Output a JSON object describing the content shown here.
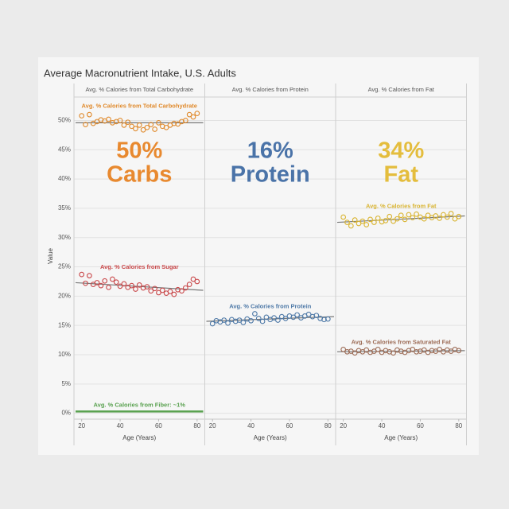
{
  "chart_data": {
    "type": "scatter",
    "title": "Average Macronutrient Intake, U.S. Adults",
    "y_label": "Value",
    "x_label": "Age (Years)",
    "ylim": [
      -1,
      54
    ],
    "yticks": [
      {
        "value": 0,
        "label": "0%"
      },
      {
        "value": 5,
        "label": "5%"
      },
      {
        "value": 10,
        "label": "10%"
      },
      {
        "value": 15,
        "label": "15%"
      },
      {
        "value": 20,
        "label": "20%"
      },
      {
        "value": 25,
        "label": "25%"
      },
      {
        "value": 30,
        "label": "30%"
      },
      {
        "value": 35,
        "label": "35%"
      },
      {
        "value": 40,
        "label": "40%"
      },
      {
        "value": 45,
        "label": "45%"
      },
      {
        "value": 50,
        "label": "50%"
      }
    ],
    "xlim": [
      16,
      84
    ],
    "xticks": [
      20,
      40,
      60,
      80
    ],
    "grid": true,
    "x": [
      20,
      22,
      24,
      26,
      28,
      30,
      32,
      34,
      36,
      38,
      40,
      42,
      44,
      46,
      48,
      50,
      52,
      54,
      56,
      58,
      60,
      62,
      64,
      66,
      68,
      70,
      72,
      74,
      76,
      78,
      80
    ],
    "panels": [
      {
        "header": "Avg. % Calories from Total Carbohydrate",
        "headline": [
          "50%",
          "Carbs"
        ],
        "headline_color": "#e8892f",
        "series": [
          {
            "name": "Avg. % Calories from Total Carbohydrate",
            "color": "#e08a2c",
            "trend": [
              49.6,
              49.6
            ],
            "values": [
              50.8,
              49.3,
              51.0,
              49.5,
              49.8,
              50.1,
              49.9,
              50.2,
              49.6,
              49.8,
              50.0,
              49.2,
              49.7,
              49.0,
              48.6,
              49.2,
              48.4,
              48.8,
              49.3,
              48.5,
              49.6,
              49.0,
              48.8,
              49.2,
              49.5,
              49.4,
              49.8,
              50.0,
              51.0,
              50.6,
              51.2
            ]
          },
          {
            "name": "Avg. % Calories from Sugar",
            "color": "#c9484a",
            "trend": [
              22.3,
              21.0
            ],
            "values": [
              23.7,
              22.2,
              23.5,
              22.0,
              22.3,
              21.8,
              22.6,
              21.5,
              22.9,
              22.4,
              21.7,
              22.1,
              21.5,
              21.8,
              21.2,
              21.9,
              21.4,
              21.6,
              20.9,
              21.3,
              20.6,
              21.0,
              20.5,
              20.8,
              20.3,
              21.1,
              20.9,
              21.4,
              22.0,
              22.9,
              22.5
            ]
          },
          {
            "name": "Avg. % Calories from Fiber: ~1%",
            "color": "#59a14f",
            "trend": [
              0.3,
              0.3
            ]
          }
        ]
      },
      {
        "header": "Avg. % Calories from Protein",
        "headline": [
          "16%",
          "Protein"
        ],
        "headline_color": "#4a73a8",
        "series": [
          {
            "name": "Avg. % Calories from Protein",
            "color": "#4e79a7",
            "trend": [
              15.7,
              16.5
            ],
            "values": [
              15.3,
              15.8,
              15.6,
              15.9,
              15.4,
              16.0,
              15.7,
              15.9,
              15.5,
              16.1,
              15.8,
              17.0,
              16.2,
              15.7,
              16.4,
              16.0,
              16.3,
              15.9,
              16.5,
              16.2,
              16.6,
              16.4,
              16.8,
              16.3,
              16.6,
              16.9,
              16.5,
              16.7,
              16.2,
              16.0,
              16.1
            ]
          }
        ]
      },
      {
        "header": "Avg. % Calories from Fat",
        "headline": [
          "34%",
          "Fat"
        ],
        "headline_color": "#e4bd3d",
        "series": [
          {
            "name": "Avg. % Calories from Fat",
            "color": "#d9b430",
            "trend": [
              32.6,
              33.7
            ],
            "values": [
              33.5,
              32.6,
              32.0,
              33.0,
              32.4,
              32.8,
              32.2,
              33.1,
              32.6,
              33.3,
              32.7,
              32.9,
              33.6,
              32.8,
              33.2,
              33.8,
              33.1,
              33.9,
              33.4,
              34.0,
              33.5,
              33.2,
              33.8,
              33.4,
              33.7,
              33.3,
              33.9,
              33.5,
              34.1,
              33.2,
              33.6
            ]
          },
          {
            "name": "Avg. % Calories from Saturated Fat",
            "color": "#9c6b55",
            "trend": [
              10.5,
              10.7
            ],
            "values": [
              10.9,
              10.5,
              10.6,
              10.3,
              10.7,
              10.5,
              10.8,
              10.4,
              10.6,
              10.9,
              10.4,
              10.7,
              10.5,
              10.3,
              10.8,
              10.6,
              10.4,
              10.7,
              10.9,
              10.5,
              10.6,
              10.8,
              10.4,
              10.7,
              10.6,
              10.9,
              10.5,
              10.8,
              10.6,
              10.9,
              10.7
            ]
          }
        ]
      }
    ]
  }
}
